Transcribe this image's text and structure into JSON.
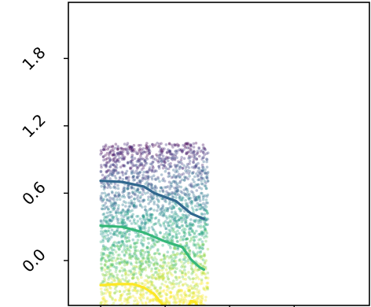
{
  "chart_data": {
    "type": "scatter",
    "title": "",
    "xlabel": "",
    "ylabel": "",
    "xlim": [
      -0.45,
      0.95
    ],
    "ylim": [
      -0.4,
      2.3
    ],
    "y_ticks": [
      {
        "value": 0.0,
        "label": "0.0"
      },
      {
        "value": 0.6,
        "label": "0.6"
      },
      {
        "value": 1.2,
        "label": "1.2"
      },
      {
        "value": 1.8,
        "label": "1.8"
      }
    ],
    "x_ticks": [
      {
        "value": -0.3,
        "label": ""
      },
      {
        "value": 0.0,
        "label": ""
      },
      {
        "value": 0.3,
        "label": ""
      },
      {
        "value": 0.6,
        "label": ""
      }
    ],
    "scatter": {
      "x_range": [
        -0.3,
        0.2
      ],
      "y_range": [
        -0.4,
        1.05
      ],
      "n_points": 2600,
      "colormap": "viridis",
      "color_by": "y",
      "point_alpha": 0.35
    },
    "contours": [
      {
        "color": "#31688e",
        "points": [
          [
            -0.3,
            0.71
          ],
          [
            -0.2,
            0.7
          ],
          [
            -0.1,
            0.66
          ],
          [
            -0.05,
            0.6
          ],
          [
            0.05,
            0.53
          ],
          [
            0.12,
            0.42
          ],
          [
            0.18,
            0.37
          ]
        ]
      },
      {
        "color": "#35b779",
        "points": [
          [
            -0.3,
            0.31
          ],
          [
            -0.2,
            0.3
          ],
          [
            -0.1,
            0.25
          ],
          [
            0.0,
            0.17
          ],
          [
            0.08,
            0.12
          ],
          [
            0.12,
            0.01
          ],
          [
            0.16,
            -0.06
          ],
          [
            0.18,
            -0.08
          ]
        ]
      },
      {
        "color": "#fde725",
        "points": [
          [
            -0.3,
            -0.22
          ],
          [
            -0.22,
            -0.21
          ],
          [
            -0.15,
            -0.21
          ],
          [
            -0.1,
            -0.24
          ],
          [
            -0.05,
            -0.3
          ],
          [
            -0.01,
            -0.4
          ]
        ]
      },
      {
        "color": "#fde725",
        "points": [
          [
            0.11,
            -0.4
          ],
          [
            0.12,
            -0.36
          ],
          [
            0.14,
            -0.37
          ],
          [
            0.15,
            -0.4
          ]
        ]
      }
    ],
    "colors": {
      "viridis": [
        "#440154",
        "#482878",
        "#3e4989",
        "#31688e",
        "#26828e",
        "#1f9e89",
        "#35b779",
        "#6ece58",
        "#b5de2b",
        "#fde725"
      ]
    },
    "grid": false,
    "legend": "none"
  }
}
